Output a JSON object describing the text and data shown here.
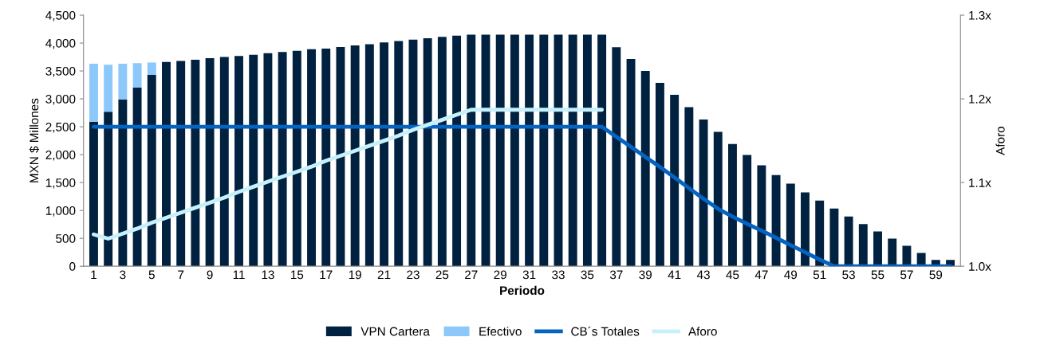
{
  "chart_data": {
    "type": "bar",
    "stacked": true,
    "xlabel": "Periodo",
    "ylabel": "MXN $ Millones",
    "y2label": "Aforo",
    "categories": [
      "1",
      null,
      "3",
      null,
      "5",
      null,
      "7",
      null,
      "9",
      null,
      "11",
      null,
      "13",
      null,
      "15",
      null,
      "17",
      null,
      "19",
      null,
      "21",
      null,
      "23",
      null,
      "25",
      null,
      "27",
      null,
      "29",
      null,
      "31",
      null,
      "33",
      null,
      "35",
      null,
      "37",
      null,
      "39",
      null,
      "41",
      null,
      "43",
      null,
      "45",
      null,
      "47",
      null,
      "49",
      null,
      "51",
      null,
      "53",
      null,
      "55",
      null,
      "57",
      null,
      "59",
      null
    ],
    "series": [
      {
        "name": "VPN Cartera",
        "color": "#002240",
        "values": [
          2590,
          2770,
          2990,
          3200,
          3430,
          3660,
          3680,
          3700,
          3730,
          3750,
          3770,
          3790,
          3820,
          3840,
          3860,
          3890,
          3900,
          3930,
          3957,
          3981,
          4010,
          4038,
          4062,
          4086,
          4110,
          4133,
          4150,
          4150,
          4150,
          4150,
          4150,
          4150,
          4150,
          4150,
          4150,
          4150,
          3924,
          3714,
          3500,
          3286,
          3071,
          2852,
          2629,
          2410,
          2190,
          1995,
          1810,
          1633,
          1481,
          1324,
          1176,
          1033,
          890,
          757,
          624,
          495,
          367,
          238,
          114,
          114
        ]
      },
      {
        "name": "Efectivo",
        "color": "#8cc8fa",
        "values": [
          1040,
          840,
          640,
          440,
          220,
          0,
          0,
          0,
          0,
          0,
          0,
          0,
          0,
          0,
          0,
          0,
          0,
          0,
          0,
          0,
          0,
          0,
          0,
          0,
          0,
          0,
          0,
          0,
          0,
          0,
          0,
          0,
          0,
          0,
          0,
          0,
          0,
          0,
          0,
          0,
          0,
          0,
          0,
          0,
          0,
          0,
          0,
          0,
          0,
          0,
          0,
          0,
          0,
          0,
          0,
          0,
          0,
          0,
          0,
          0
        ]
      },
      {
        "name": "CB´s Totales",
        "type": "line",
        "color": "#0563c1",
        "values": [
          2500,
          2500,
          2500,
          2500,
          2500,
          2500,
          2500,
          2500,
          2500,
          2500,
          2500,
          2500,
          2500,
          2500,
          2500,
          2500,
          2500,
          2500,
          2500,
          2500,
          2500,
          2500,
          2500,
          2500,
          2500,
          2500,
          2500,
          2500,
          2500,
          2500,
          2500,
          2500,
          2500,
          2500,
          2500,
          2500,
          2320,
          2140,
          1960,
          1780,
          1590,
          1400,
          1210,
          1030,
          890,
          760,
          640,
          510,
          380,
          250,
          120,
          0,
          0,
          0,
          0,
          0,
          0,
          0,
          0,
          0
        ]
      },
      {
        "name": "Aforo",
        "type": "line",
        "axis": "y2",
        "color": "#c6f1fb",
        "values": [
          1.038,
          1.033,
          1.039,
          1.045,
          1.052,
          1.058,
          1.064,
          1.07,
          1.076,
          1.082,
          1.089,
          1.095,
          1.101,
          1.107,
          1.113,
          1.119,
          1.126,
          1.132,
          1.138,
          1.144,
          1.15,
          1.156,
          1.163,
          1.169,
          1.175,
          1.181,
          1.187,
          1.187,
          1.187,
          1.187,
          1.187,
          1.187,
          1.187,
          1.187,
          1.187,
          1.187,
          null,
          null,
          null,
          null,
          null,
          null,
          null,
          null,
          null,
          null,
          null,
          null,
          null,
          null,
          null,
          null,
          null,
          null,
          null,
          null,
          null,
          null,
          null,
          null
        ]
      }
    ],
    "ylim": [
      0,
      4500
    ],
    "yticks": [
      {
        "value": 0,
        "label": "0"
      },
      {
        "value": 500,
        "label": "500"
      },
      {
        "value": 1000,
        "label": "1,000"
      },
      {
        "value": 1500,
        "label": "1,500"
      },
      {
        "value": 2000,
        "label": "2,000"
      },
      {
        "value": 2500,
        "label": "2,500"
      },
      {
        "value": 3000,
        "label": "3,000"
      },
      {
        "value": 3500,
        "label": "3,500"
      },
      {
        "value": 4000,
        "label": "4,000"
      },
      {
        "value": 4500,
        "label": "4,500"
      }
    ],
    "y2lim": [
      1.0,
      1.3
    ],
    "y2ticks": [
      {
        "value": 1.0,
        "label": "1.0x"
      },
      {
        "value": 1.1,
        "label": "1.1x"
      },
      {
        "value": 1.2,
        "label": "1.2x"
      },
      {
        "value": 1.3,
        "label": "1.3x"
      }
    ],
    "grid": false,
    "legend": "bottom"
  }
}
